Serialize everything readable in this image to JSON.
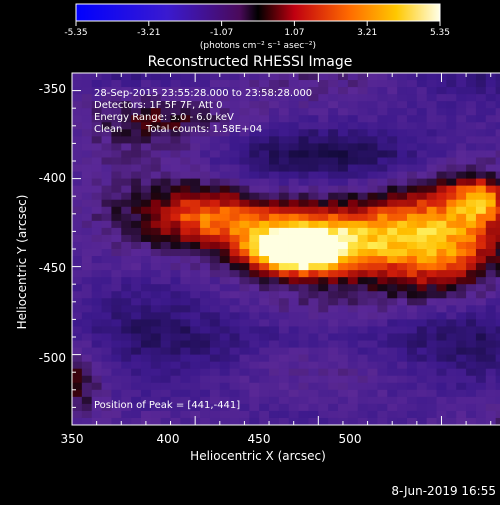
{
  "colorbar": {
    "ticks": [
      "-5.35",
      "-3.21",
      "-1.07",
      "1.07",
      "3.21",
      "5.35"
    ],
    "unit_label": "(photons cm⁻² s⁻¹ asec⁻²)",
    "range": [
      -5.35,
      5.35
    ]
  },
  "chart_data": {
    "type": "heatmap",
    "title": "Reconstructed RHESSI Image",
    "xlabel": "Heliocentric X (arcsec)",
    "ylabel": "Heliocentric Y (arcsec)",
    "xlim": [
      350,
      540
    ],
    "ylim": [
      -540,
      -340
    ],
    "xticks": [
      "350",
      "400",
      "450",
      "500"
    ],
    "yticks": [
      "-350",
      "-400",
      "-450",
      "-500"
    ],
    "peak": {
      "x": 441,
      "y": -441
    },
    "annotations": {
      "time": "28-Sep-2015 23:55:28.000 to 23:58:28.000",
      "detectors": "Detectors: 1F 5F 7F, Att 0",
      "energy": "Energy Range: 3.0 - 6.0 keV",
      "method": "Clean",
      "counts": "Total counts: 1.58E+04",
      "peak_text": "Position of Peak = [441,-441]"
    }
  },
  "footer": {
    "date": "8-Jun-2019 16:55"
  }
}
